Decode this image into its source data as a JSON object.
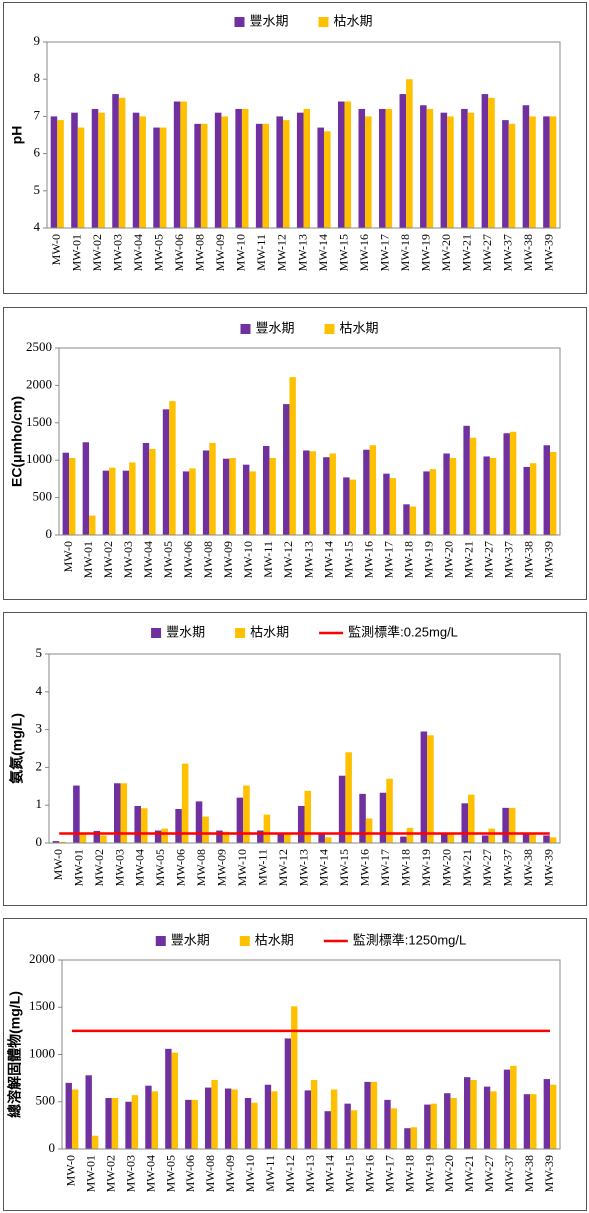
{
  "chart_data": [
    {
      "type": "bar",
      "y_label": "pH",
      "categories": [
        "MW-0",
        "MW-01",
        "MW-02",
        "MW-03",
        "MW-04",
        "MW-05",
        "MW-06",
        "MW-08",
        "MW-09",
        "MW-10",
        "MW-11",
        "MW-12",
        "MW-13",
        "MW-14",
        "MW-15",
        "MW-16",
        "MW-17",
        "MW-18",
        "MW-19",
        "MW-20",
        "MW-21",
        "MW-27",
        "MW-37",
        "MW-38",
        "MW-39"
      ],
      "series": [
        {
          "name": "豐水期",
          "color": "#7030a0",
          "values": [
            7.0,
            7.1,
            7.2,
            7.6,
            7.1,
            6.7,
            7.4,
            6.8,
            7.1,
            7.2,
            6.8,
            7.0,
            7.1,
            6.7,
            7.4,
            7.2,
            7.2,
            7.6,
            7.3,
            7.1,
            7.2,
            7.6,
            6.9,
            7.3,
            7.0
          ]
        },
        {
          "name": "枯水期",
          "color": "#ffc000",
          "values": [
            6.9,
            6.7,
            7.1,
            7.5,
            7.0,
            6.7,
            7.4,
            6.8,
            7.0,
            7.2,
            6.8,
            6.9,
            7.2,
            6.6,
            7.4,
            7.0,
            7.2,
            8.0,
            7.2,
            7.0,
            7.1,
            7.5,
            6.8,
            7.0,
            7.0
          ]
        }
      ],
      "ylim": [
        4,
        9
      ],
      "yticks": [
        4,
        5,
        6,
        7,
        8,
        9
      ],
      "grid": false
    },
    {
      "type": "bar",
      "y_label": "EC(μmho/cm)",
      "categories": [
        "MW-0",
        "MW-01",
        "MW-02",
        "MW-03",
        "MW-04",
        "MW-05",
        "MW-06",
        "MW-08",
        "MW-09",
        "MW-10",
        "MW-11",
        "MW-12",
        "MW-13",
        "MW-14",
        "MW-15",
        "MW-16",
        "MW-17",
        "MW-18",
        "MW-19",
        "MW-20",
        "MW-21",
        "MW-27",
        "MW-37",
        "MW-38",
        "MW-39"
      ],
      "series": [
        {
          "name": "豐水期",
          "color": "#7030a0",
          "values": [
            1100,
            1240,
            860,
            860,
            1230,
            1680,
            850,
            1130,
            1020,
            940,
            1190,
            1750,
            1130,
            1040,
            770,
            1140,
            820,
            410,
            850,
            1090,
            1460,
            1050,
            1360,
            910,
            1200
          ]
        },
        {
          "name": "枯水期",
          "color": "#ffc000",
          "values": [
            1030,
            260,
            900,
            970,
            1150,
            1790,
            890,
            1230,
            1030,
            850,
            1030,
            2110,
            1120,
            1090,
            740,
            1200,
            760,
            380,
            880,
            1030,
            1300,
            1030,
            1380,
            960,
            1110
          ]
        }
      ],
      "ylim": [
        0,
        2500
      ],
      "yticks": [
        0,
        500,
        1000,
        1500,
        2000,
        2500
      ],
      "grid": false
    },
    {
      "type": "bar",
      "y_label": "氨氮(mg/L)",
      "categories": [
        "MW-0",
        "MW-01",
        "MW-02",
        "MW-03",
        "MW-04",
        "MW-05",
        "MW-06",
        "MW-08",
        "MW-09",
        "MW-10",
        "MW-11",
        "MW-12",
        "MW-13",
        "MW-14",
        "MW-15",
        "MW-16",
        "MW-17",
        "MW-18",
        "MW-19",
        "MW-20",
        "MW-21",
        "MW-27",
        "MW-37",
        "MW-38",
        "MW-39"
      ],
      "series": [
        {
          "name": "豐水期",
          "color": "#7030a0",
          "values": [
            0.05,
            1.52,
            0.32,
            1.58,
            0.98,
            0.33,
            0.9,
            1.1,
            0.33,
            1.2,
            0.33,
            0.25,
            0.98,
            0.25,
            1.78,
            1.3,
            1.33,
            0.17,
            2.95,
            0.25,
            1.05,
            0.2,
            0.93,
            0.25,
            0.2
          ]
        },
        {
          "name": "枯水期",
          "color": "#ffc000",
          "values": [
            0.03,
            0.25,
            0.2,
            1.58,
            0.92,
            0.38,
            2.1,
            0.7,
            0.3,
            1.52,
            0.75,
            0.25,
            1.38,
            0.15,
            2.4,
            0.65,
            1.7,
            0.4,
            2.85,
            0.25,
            1.28,
            0.38,
            0.93,
            0.25,
            0.15
          ]
        }
      ],
      "lines": [
        {
          "name": "監測標準:0.25mg/L",
          "color": "#ff0000",
          "value": 0.25
        }
      ],
      "ylim": [
        0,
        5
      ],
      "yticks": [
        0,
        1,
        2,
        3,
        4,
        5
      ],
      "grid": false
    },
    {
      "type": "bar",
      "y_label": "總溶解固體物(mg/L)",
      "categories": [
        "MW-0",
        "MW-01",
        "MW-02",
        "MW-03",
        "MW-04",
        "MW-05",
        "MW-06",
        "MW-08",
        "MW-09",
        "MW-10",
        "MW-11",
        "MW-12",
        "MW-13",
        "MW-14",
        "MW-15",
        "MW-16",
        "MW-17",
        "MW-18",
        "MW-19",
        "MW-20",
        "MW-21",
        "MW-27",
        "MW-37",
        "MW-38",
        "MW-39"
      ],
      "series": [
        {
          "name": "豐水期",
          "color": "#7030a0",
          "values": [
            700,
            780,
            540,
            500,
            670,
            1060,
            520,
            650,
            640,
            540,
            680,
            1170,
            620,
            400,
            480,
            710,
            520,
            220,
            470,
            590,
            760,
            660,
            840,
            580,
            740
          ]
        },
        {
          "name": "枯水期",
          "color": "#ffc000",
          "values": [
            630,
            140,
            540,
            570,
            610,
            1020,
            520,
            730,
            630,
            490,
            610,
            1510,
            730,
            630,
            410,
            710,
            430,
            230,
            480,
            540,
            730,
            610,
            880,
            580,
            680
          ]
        }
      ],
      "lines": [
        {
          "name": "監測標準:1250mg/L",
          "color": "#ff0000",
          "value": 1250
        }
      ],
      "ylim": [
        0,
        2000
      ],
      "yticks": [
        0,
        500,
        1000,
        1500,
        2000
      ],
      "grid": false
    }
  ]
}
